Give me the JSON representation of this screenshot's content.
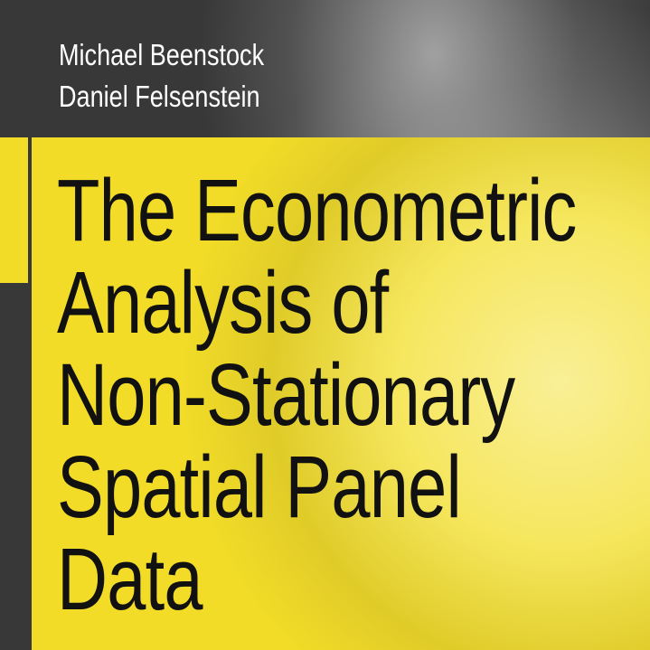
{
  "cover": {
    "authors": [
      "Michael Beenstock",
      "Daniel Felsenstein"
    ],
    "title_lines": [
      "The Econometric",
      "Analysis of",
      "Non-Stationary",
      "Spatial Panel",
      "Data"
    ],
    "colors": {
      "accent_yellow": "#f2dc28",
      "background": "#383838",
      "title_text": "#111111",
      "author_text": "#ffffff"
    },
    "background_image": "grayscale-earth-globe"
  }
}
